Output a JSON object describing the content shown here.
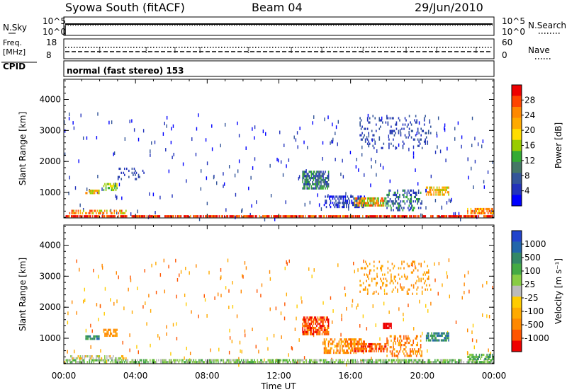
{
  "header": {
    "title": "Syowa South (fitACF)",
    "beam": "Beam 04",
    "date": "29/Jun/2010"
  },
  "top_panels": {
    "nsky_label": "N.Sky",
    "nsky_ticks": [
      "10^5",
      "10^0"
    ],
    "nsearch_label": "N.Search",
    "nsearch_ticks": [
      "10^5",
      "10^0"
    ],
    "freq_label": "Freq.",
    "freq_unit": "[MHz]",
    "freq_ticks": [
      "18",
      "8"
    ],
    "nave_label": "Nave",
    "nave_ticks": [
      "60",
      "0"
    ],
    "cpid_label": "CPID",
    "cpid_text": "normal (fast stereo) 153"
  },
  "chart_data": [
    {
      "type": "heatmap",
      "name": "power-panel",
      "ylabel": "Slant Range [km]",
      "yticks": [
        1000,
        2000,
        3000,
        4000
      ],
      "ylim": [
        180,
        4650
      ],
      "xlim": [
        0,
        24
      ],
      "colorbar": {
        "label": "Power [dB]",
        "ticks": [
          "28",
          "24",
          "20",
          "16",
          "12",
          "8",
          "4"
        ],
        "colors": [
          "#ee0000",
          "#ff4400",
          "#ff8800",
          "#ffaa00",
          "#ffdd00",
          "#99cc00",
          "#33aa33",
          "#447766",
          "#335599",
          "#2233bb",
          "#0000ff"
        ]
      },
      "clusters": [
        {
          "x": 0.1,
          "x2": 24,
          "y": 200,
          "y2": 300,
          "c": [
            0,
            0,
            1,
            2
          ],
          "d": 0.8
        },
        {
          "x": 0.3,
          "x2": 3.5,
          "y": 300,
          "y2": 450,
          "c": [
            1,
            2,
            3,
            5
          ],
          "d": 0.6
        },
        {
          "x": 1.2,
          "x2": 2.0,
          "y": 950,
          "y2": 1100,
          "c": [
            2,
            3,
            5
          ],
          "d": 0.8
        },
        {
          "x": 2.2,
          "x2": 3.0,
          "y": 1050,
          "y2": 1300,
          "c": [
            4,
            5,
            6
          ],
          "d": 0.7
        },
        {
          "x": 3.0,
          "x2": 4.5,
          "y": 1400,
          "y2": 1800,
          "c": [
            8,
            9
          ],
          "d": 0.25
        },
        {
          "x": 13.3,
          "x2": 14.8,
          "y": 1100,
          "y2": 1700,
          "c": [
            6,
            7,
            8,
            9
          ],
          "d": 0.7
        },
        {
          "x": 14.5,
          "x2": 16.8,
          "y": 500,
          "y2": 900,
          "c": [
            8,
            9,
            10
          ],
          "d": 0.5
        },
        {
          "x": 16.2,
          "x2": 18.0,
          "y": 550,
          "y2": 850,
          "c": [
            1,
            2,
            3,
            5,
            6
          ],
          "d": 0.7
        },
        {
          "x": 18.0,
          "x2": 20.0,
          "y": 400,
          "y2": 1100,
          "c": [
            6,
            8,
            9
          ],
          "d": 0.35
        },
        {
          "x": 20.2,
          "x2": 21.5,
          "y": 900,
          "y2": 1200,
          "c": [
            2,
            3,
            5
          ],
          "d": 0.7
        },
        {
          "x": 16.5,
          "x2": 20.5,
          "y": 2400,
          "y2": 3500,
          "c": [
            8,
            9
          ],
          "d": 0.15
        },
        {
          "x": 22.5,
          "x2": 24,
          "y": 300,
          "y2": 500,
          "c": [
            1,
            2,
            4
          ],
          "d": 0.6
        }
      ]
    },
    {
      "type": "heatmap",
      "name": "velocity-panel",
      "xlabel": "Time UT",
      "ylabel": "Slant Range [km]",
      "yticks": [
        1000,
        2000,
        3000,
        4000
      ],
      "xticks": [
        "00:00",
        "04:00",
        "08:00",
        "12:00",
        "16:00",
        "20:00",
        "00:00"
      ],
      "ylim": [
        180,
        4650
      ],
      "xlim": [
        0,
        24
      ],
      "colorbar": {
        "label": "Velocity [m s⁻¹]",
        "ticks": [
          "1000",
          "500",
          "100",
          "25",
          "-25",
          "-100",
          "-500",
          "-1000"
        ],
        "colors": [
          "#2244cc",
          "#2266aa",
          "#338866",
          "#44aa44",
          "#88cc44",
          "#bbbbbb",
          "#ffcc00",
          "#ffaa00",
          "#ff8800",
          "#ff5500",
          "#ee0000"
        ]
      },
      "clusters": [
        {
          "x": 0.1,
          "x2": 24,
          "y": 200,
          "y2": 320,
          "c": [
            3,
            4,
            5
          ],
          "d": 0.7
        },
        {
          "x": 0.3,
          "x2": 3.5,
          "y": 320,
          "y2": 450,
          "c": [
            4,
            5,
            7
          ],
          "d": 0.5
        },
        {
          "x": 1.2,
          "x2": 2.0,
          "y": 950,
          "y2": 1100,
          "c": [
            1,
            2,
            3
          ],
          "d": 0.8
        },
        {
          "x": 2.2,
          "x2": 3.0,
          "y": 1050,
          "y2": 1300,
          "c": [
            7,
            8
          ],
          "d": 0.6
        },
        {
          "x": 13.3,
          "x2": 14.8,
          "y": 1100,
          "y2": 1700,
          "c": [
            8,
            9,
            10
          ],
          "d": 0.75
        },
        {
          "x": 14.5,
          "x2": 16.8,
          "y": 500,
          "y2": 1000,
          "c": [
            7,
            8,
            9
          ],
          "d": 0.55
        },
        {
          "x": 16.2,
          "x2": 18.0,
          "y": 550,
          "y2": 850,
          "c": [
            8,
            9,
            10
          ],
          "d": 0.7
        },
        {
          "x": 17.8,
          "x2": 18.3,
          "y": 1300,
          "y2": 1500,
          "c": [
            10
          ],
          "d": 0.8
        },
        {
          "x": 18.0,
          "x2": 20.0,
          "y": 400,
          "y2": 1100,
          "c": [
            7,
            8,
            9
          ],
          "d": 0.35
        },
        {
          "x": 20.2,
          "x2": 21.5,
          "y": 900,
          "y2": 1200,
          "c": [
            1,
            2,
            3
          ],
          "d": 0.7
        },
        {
          "x": 16.5,
          "x2": 20.5,
          "y": 2400,
          "y2": 3500,
          "c": [
            7,
            8
          ],
          "d": 0.15
        },
        {
          "x": 22.5,
          "x2": 24,
          "y": 300,
          "y2": 500,
          "c": [
            2,
            3,
            4
          ],
          "d": 0.6
        }
      ]
    }
  ]
}
